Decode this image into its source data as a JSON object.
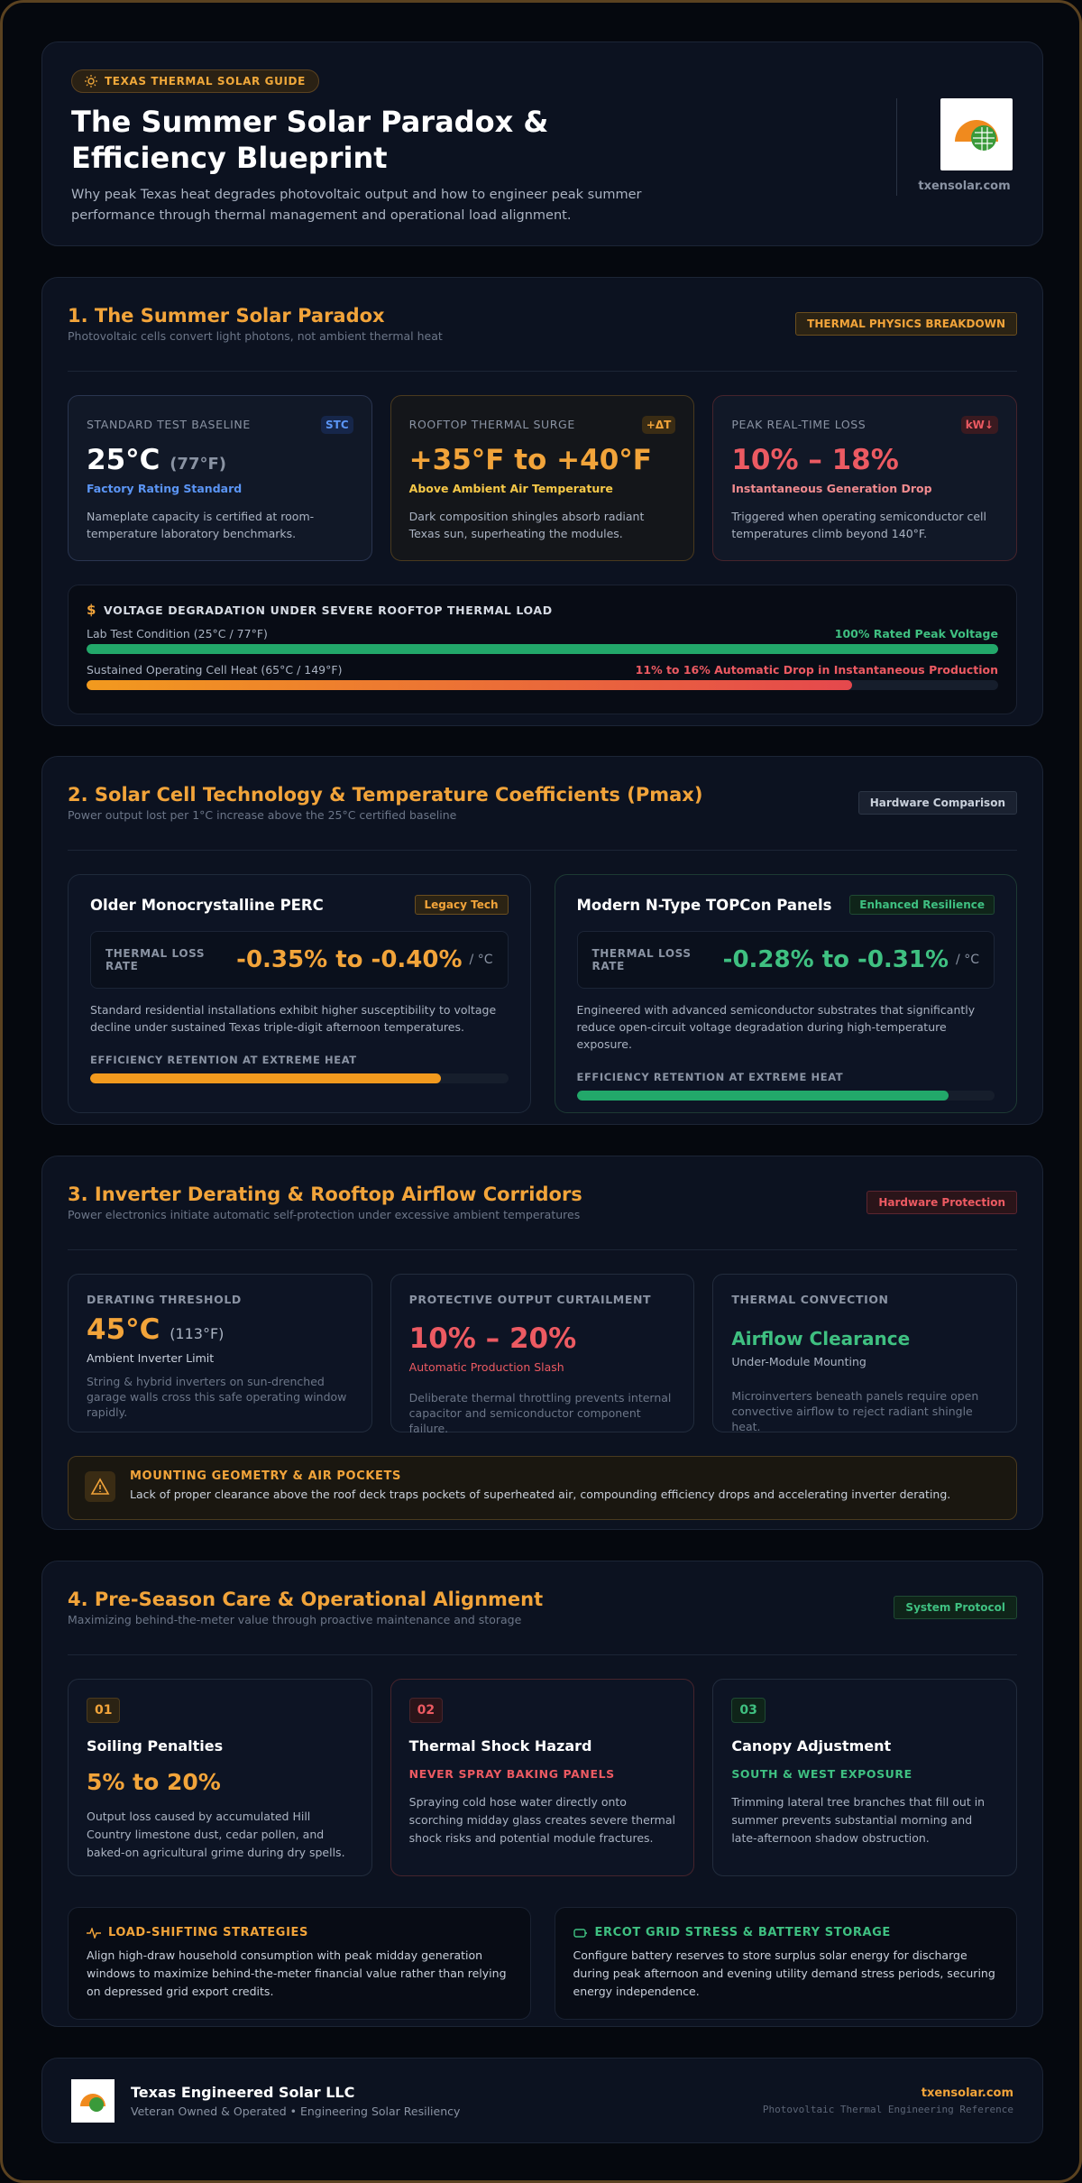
{
  "header": {
    "badge": "TEXAS THERMAL SOLAR GUIDE",
    "title": "The Summer Solar Paradox & Efficiency Blueprint",
    "subtitle": "Why peak Texas heat degrades photovoltaic output and how to engineer peak summer performance through thermal management and operational load alignment.",
    "domain": "txensolar.com"
  },
  "section1": {
    "title": "1. The Summer Solar Paradox",
    "subtitle": "Photovoltaic cells convert light photons, not ambient thermal heat",
    "tag": "THERMAL PHYSICS BREAKDOWN",
    "cards": [
      {
        "label": "STANDARD TEST BASELINE",
        "icon": "STC",
        "value": "25°C",
        "value_extra": "(77°F)",
        "caption": "Factory Rating Standard",
        "text": "Nameplate capacity is certified at room-temperature laboratory benchmarks."
      },
      {
        "label": "ROOFTOP THERMAL SURGE",
        "icon": "+ΔT",
        "value": "+35°F to +40°F",
        "caption": "Above Ambient Air Temperature",
        "text": "Dark composition shingles absorb radiant Texas sun, superheating the modules."
      },
      {
        "label": "PEAK REAL-TIME LOSS",
        "icon": "kW↓",
        "value": "10% – 18%",
        "caption": "Instantaneous Generation Drop",
        "text": "Triggered when operating semiconductor cell temperatures climb beyond 140°F."
      }
    ],
    "voltage": {
      "title": "VOLTAGE DEGRADATION UNDER SEVERE ROOFTOP THERMAL LOAD",
      "rows": [
        {
          "label": "Lab Test Condition (25°C / 77°F)",
          "note": "100% Rated Peak Voltage",
          "fill": 100
        },
        {
          "label": "Sustained Operating Cell Heat (65°C / 149°F)",
          "note": "11% to 16% Automatic Drop in Instantaneous Production",
          "fill": 84
        }
      ]
    }
  },
  "section2": {
    "title": "2. Solar Cell Technology & Temperature Coefficients (Pmax)",
    "subtitle": "Power output lost per 1°C increase above the 25°C certified baseline",
    "tag": "Hardware Comparison",
    "panels": [
      {
        "name": "Older Monocrystalline PERC",
        "tag": "Legacy Tech",
        "rate_label": "THERMAL LOSS RATE",
        "rate": "-0.35% to -0.40%",
        "unit": "/ °C",
        "text": "Standard residential installations exhibit higher susceptibility to voltage decline under sustained Texas triple-digit afternoon temperatures.",
        "bar_label": "EFFICIENCY RETENTION AT EXTREME HEAT",
        "fill": 84
      },
      {
        "name": "Modern N-Type TOPCon Panels",
        "tag": "Enhanced Resilience",
        "rate_label": "THERMAL LOSS RATE",
        "rate": "-0.28% to -0.31%",
        "unit": "/ °C",
        "text": "Engineered with advanced semiconductor substrates that significantly reduce open-circuit voltage degradation during high-temperature exposure.",
        "bar_label": "EFFICIENCY RETENTION AT EXTREME HEAT",
        "fill": 89
      }
    ]
  },
  "section3": {
    "title": "3. Inverter Derating & Rooftop Airflow Corridors",
    "subtitle": "Power electronics initiate automatic self-protection under excessive ambient temperatures",
    "tag": "Hardware Protection",
    "cards": [
      {
        "label": "DERATING THRESHOLD",
        "value": "45°C",
        "value_extra": "(113°F)",
        "caption": "Ambient Inverter Limit",
        "text": "String & hybrid inverters on sun-drenched garage walls cross this safe operating window rapidly."
      },
      {
        "label": "PROTECTIVE OUTPUT CURTAILMENT",
        "value": "10% – 20%",
        "caption": "Automatic Production Slash",
        "text": "Deliberate thermal throttling prevents internal capacitor and semiconductor component failure."
      },
      {
        "label": "THERMAL CONVECTION",
        "value": "Airflow Clearance",
        "caption": "Under-Module Mounting",
        "text": "Microinverters beneath panels require open convective airflow to reject radiant shingle heat."
      }
    ],
    "alert": {
      "title": "MOUNTING GEOMETRY & AIR POCKETS",
      "text": "Lack of proper clearance above the roof deck traps pockets of superheated air, compounding efficiency drops and accelerating inverter derating."
    }
  },
  "section4": {
    "title": "4. Pre-Season Care & Operational Alignment",
    "subtitle": "Maximizing behind-the-meter value through proactive maintenance and storage",
    "tag": "System Protocol",
    "steps": [
      {
        "number": "01",
        "title": "Soiling Penalties",
        "highlight": "5% to 20%",
        "text": "Output loss caused by accumulated Hill Country limestone dust, cedar pollen, and baked-on agricultural grime during dry spells."
      },
      {
        "number": "02",
        "title": "Thermal Shock Hazard",
        "highlight": "NEVER SPRAY BAKING PANELS",
        "text": "Spraying cold hose water directly onto scorching midday glass creates severe thermal shock risks and potential module fractures."
      },
      {
        "number": "03",
        "title": "Canopy Adjustment",
        "highlight": "SOUTH & WEST EXPOSURE",
        "text": "Trimming lateral tree branches that fill out in summer prevents substantial morning and late-afternoon shadow obstruction."
      }
    ],
    "boxes": [
      {
        "title": "LOAD-SHIFTING STRATEGIES",
        "text": "Align high-draw household consumption with peak midday generation windows to maximize behind-the-meter financial value rather than relying on depressed grid export credits."
      },
      {
        "title": "ERCOT GRID STRESS & BATTERY STORAGE",
        "text": "Configure battery reserves to store surplus solar energy for discharge during peak afternoon and evening utility demand stress periods, securing energy independence."
      }
    ]
  },
  "footer": {
    "company": "Texas Engineered Solar LLC",
    "tagline": "Veteran Owned & Operated • Engineering Solar Resiliency",
    "domain": "txensolar.com",
    "reference": "Photovoltaic Thermal Engineering Reference"
  }
}
